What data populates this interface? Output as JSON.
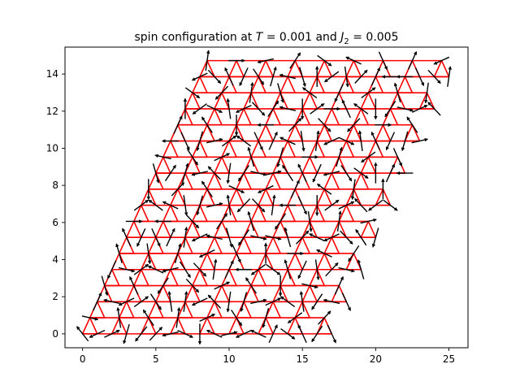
{
  "chart_data": {
    "type": "quiver",
    "title": "spin configuration at T = 0.001 and J2 = 0.005",
    "title_parts": {
      "prefix": "spin configuration at ",
      "T_symbol": "T",
      "T_value": " = 0.001",
      "joiner": " and ",
      "J_symbol": "J",
      "J_subscript": "2",
      "J_value": " = 0.005"
    },
    "xlim": [
      -1.2,
      26.3
    ],
    "ylim": [
      -0.75,
      15.45
    ],
    "xticks": [
      0,
      5,
      10,
      15,
      20,
      25
    ],
    "xtick_labels": [
      "0",
      "5",
      "10",
      "15",
      "20",
      "25"
    ],
    "yticks": [
      0,
      2,
      4,
      6,
      8,
      10,
      12,
      14
    ],
    "ytick_labels": [
      "0",
      "2",
      "4",
      "6",
      "8",
      "10",
      "12",
      "14"
    ],
    "grid": false,
    "lattice": {
      "kind": "kagome",
      "color": "#ff0000",
      "rows": 9,
      "cols": 9,
      "a1": [
        2.0,
        0.0
      ],
      "a2": [
        1.0,
        1.7320508
      ],
      "origin": [
        0.0,
        0.0
      ]
    },
    "spins": {
      "color": "#000000",
      "length": 1.1,
      "sublattice_offsets": [
        [
          0,
          0
        ],
        [
          1,
          0
        ],
        [
          0.5,
          0.8660254
        ]
      ],
      "angles_deg": [
        [
          [
            135,
            200,
            350
          ],
          [
            20,
            250,
            100
          ],
          [
            225,
            40,
            130
          ],
          [
            190,
            340,
            80
          ],
          [
            270,
            160,
            20
          ],
          [
            10,
            200,
            310
          ],
          [
            160,
            60,
            250
          ],
          [
            330,
            120,
            210
          ],
          [
            230,
            300,
            40
          ]
        ],
        [
          [
            60,
            170,
            290
          ],
          [
            200,
            30,
            120
          ],
          [
            310,
            100,
            230
          ],
          [
            80,
            200,
            320
          ],
          [
            140,
            260,
            20
          ],
          [
            250,
            10,
            130
          ],
          [
            20,
            150,
            270
          ],
          [
            100,
            230,
            350
          ],
          [
            170,
            300,
            60
          ]
        ],
        [
          [
            240,
            350,
            110
          ],
          [
            30,
            160,
            280
          ],
          [
            190,
            310,
            70
          ],
          [
            320,
            80,
            200
          ],
          [
            60,
            180,
            300
          ],
          [
            210,
            330,
            90
          ],
          [
            110,
            240,
            0
          ],
          [
            280,
            40,
            160
          ],
          [
            350,
            110,
            230
          ]
        ],
        [
          [
            120,
            240,
            0
          ],
          [
            300,
            60,
            180
          ],
          [
            80,
            200,
            320
          ],
          [
            170,
            290,
            50
          ],
          [
            230,
            350,
            110
          ],
          [
            350,
            110,
            230
          ],
          [
            40,
            160,
            280
          ],
          [
            200,
            320,
            80
          ],
          [
            130,
            250,
            10
          ]
        ],
        [
          [
            30,
            150,
            270
          ],
          [
            160,
            280,
            40
          ],
          [
            250,
            10,
            130
          ],
          [
            100,
            220,
            340
          ],
          [
            320,
            80,
            200
          ],
          [
            180,
            300,
            60
          ],
          [
            270,
            30,
            150
          ],
          [
            20,
            140,
            260
          ],
          [
            210,
            330,
            90
          ]
        ],
        [
          [
            290,
            50,
            170
          ],
          [
            70,
            190,
            310
          ],
          [
            140,
            260,
            20
          ],
          [
            230,
            350,
            110
          ],
          [
            10,
            130,
            250
          ],
          [
            120,
            240,
            0
          ],
          [
            190,
            310,
            70
          ],
          [
            330,
            90,
            210
          ],
          [
            60,
            180,
            300
          ]
        ],
        [
          [
            180,
            300,
            60
          ],
          [
            250,
            10,
            130
          ],
          [
            30,
            150,
            270
          ],
          [
            300,
            60,
            180
          ],
          [
            160,
            280,
            40
          ],
          [
            80,
            200,
            320
          ],
          [
            340,
            100,
            220
          ],
          [
            120,
            240,
            0
          ],
          [
            250,
            10,
            130
          ]
        ],
        [
          [
            90,
            210,
            330
          ],
          [
            340,
            100,
            220
          ],
          [
            200,
            320,
            80
          ],
          [
            50,
            170,
            290
          ],
          [
            270,
            30,
            150
          ],
          [
            0,
            120,
            240
          ],
          [
            150,
            270,
            30
          ],
          [
            230,
            350,
            110
          ],
          [
            20,
            140,
            260
          ]
        ],
        [
          [
            200,
            320,
            80
          ],
          [
            120,
            240,
            0
          ],
          [
            310,
            70,
            190
          ],
          [
            170,
            290,
            50
          ],
          [
            90,
            210,
            330
          ],
          [
            280,
            40,
            160
          ],
          [
            60,
            180,
            300
          ],
          [
            180,
            300,
            60
          ],
          [
            320,
            80,
            200
          ]
        ]
      ]
    }
  }
}
